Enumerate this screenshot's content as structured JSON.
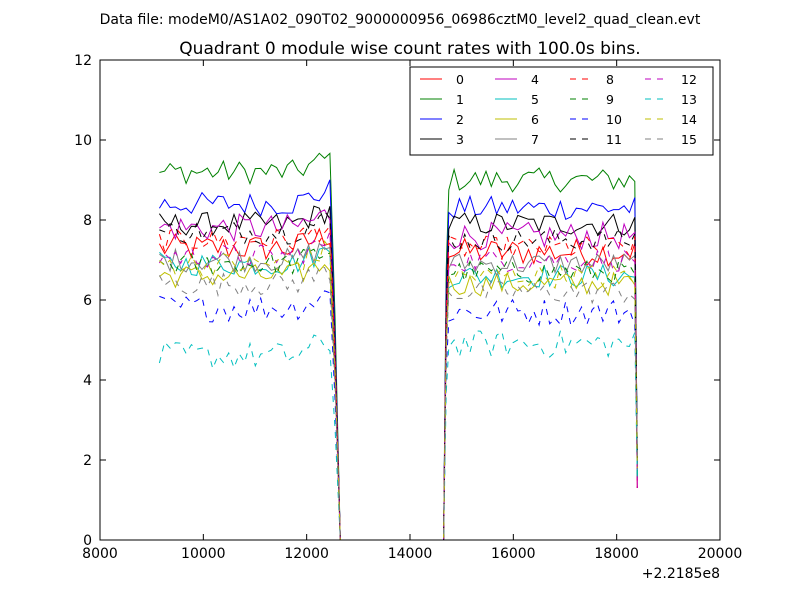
{
  "suptitle": "Data file: modeM0/AS1A02_090T02_9000000956_06986cztM0_level2_quad_clean.evt",
  "chart_data": {
    "type": "line",
    "title": "Quadrant 0 module wise count rates with 100.0s bins.",
    "xlabel": "",
    "ylabel": "",
    "x_offset_label": "+2.2185e8",
    "xlim": [
      8000,
      20000
    ],
    "ylim": [
      0,
      12
    ],
    "xticks": [
      "8000",
      "10000",
      "12000",
      "14000",
      "16000",
      "18000",
      "20000"
    ],
    "yticks": [
      "0",
      "2",
      "4",
      "6",
      "8",
      "10",
      "12"
    ],
    "grid": false,
    "legend_position": "top-right",
    "legend_columns": 4,
    "segments": [
      [
        9150,
        12450,
        33
      ],
      [
        14750,
        18350,
        36
      ]
    ],
    "gap": {
      "start": 12650,
      "end": 14650,
      "value": 0
    },
    "series": [
      {
        "name": "0",
        "color": "#ff0000",
        "dash": "solid",
        "level": [
          7.3,
          7.2
        ],
        "noise": 0.35
      },
      {
        "name": "1",
        "color": "#008000",
        "dash": "solid",
        "level": [
          9.2,
          9.0
        ],
        "noise": 0.3
      },
      {
        "name": "2",
        "color": "#0000ff",
        "dash": "solid",
        "level": [
          8.4,
          8.3
        ],
        "noise": 0.3
      },
      {
        "name": "3",
        "color": "#000000",
        "dash": "solid",
        "level": [
          7.9,
          7.9
        ],
        "noise": 0.3
      },
      {
        "name": "4",
        "color": "#bf00bf",
        "dash": "solid",
        "level": [
          7.8,
          7.6
        ],
        "noise": 0.35
      },
      {
        "name": "5",
        "color": "#00bfbf",
        "dash": "solid",
        "level": [
          6.9,
          6.6
        ],
        "noise": 0.3
      },
      {
        "name": "6",
        "color": "#bfbf00",
        "dash": "solid",
        "level": [
          6.6,
          6.4
        ],
        "noise": 0.3
      },
      {
        "name": "7",
        "color": "#808080",
        "dash": "solid",
        "level": [
          7.0,
          6.9
        ],
        "noise": 0.3
      },
      {
        "name": "8",
        "color": "#ff0000",
        "dash": "dashed",
        "level": [
          7.5,
          7.3
        ],
        "noise": 0.3
      },
      {
        "name": "9",
        "color": "#008000",
        "dash": "dashed",
        "level": [
          6.9,
          6.7
        ],
        "noise": 0.3
      },
      {
        "name": "10",
        "color": "#0000ff",
        "dash": "dashed",
        "level": [
          5.8,
          5.7
        ],
        "noise": 0.35
      },
      {
        "name": "11",
        "color": "#000000",
        "dash": "dashed",
        "level": [
          7.7,
          7.5
        ],
        "noise": 0.3
      },
      {
        "name": "12",
        "color": "#bf00bf",
        "dash": "dashed",
        "level": [
          7.1,
          7.0
        ],
        "noise": 0.3
      },
      {
        "name": "13",
        "color": "#00bfbf",
        "dash": "dashed",
        "level": [
          4.6,
          4.9
        ],
        "noise": 0.35
      },
      {
        "name": "14",
        "color": "#bfbf00",
        "dash": "dashed",
        "level": [
          6.9,
          6.6
        ],
        "noise": 0.3
      },
      {
        "name": "15",
        "color": "#808080",
        "dash": "dashed",
        "level": [
          6.4,
          6.2
        ],
        "noise": 0.3
      }
    ]
  }
}
